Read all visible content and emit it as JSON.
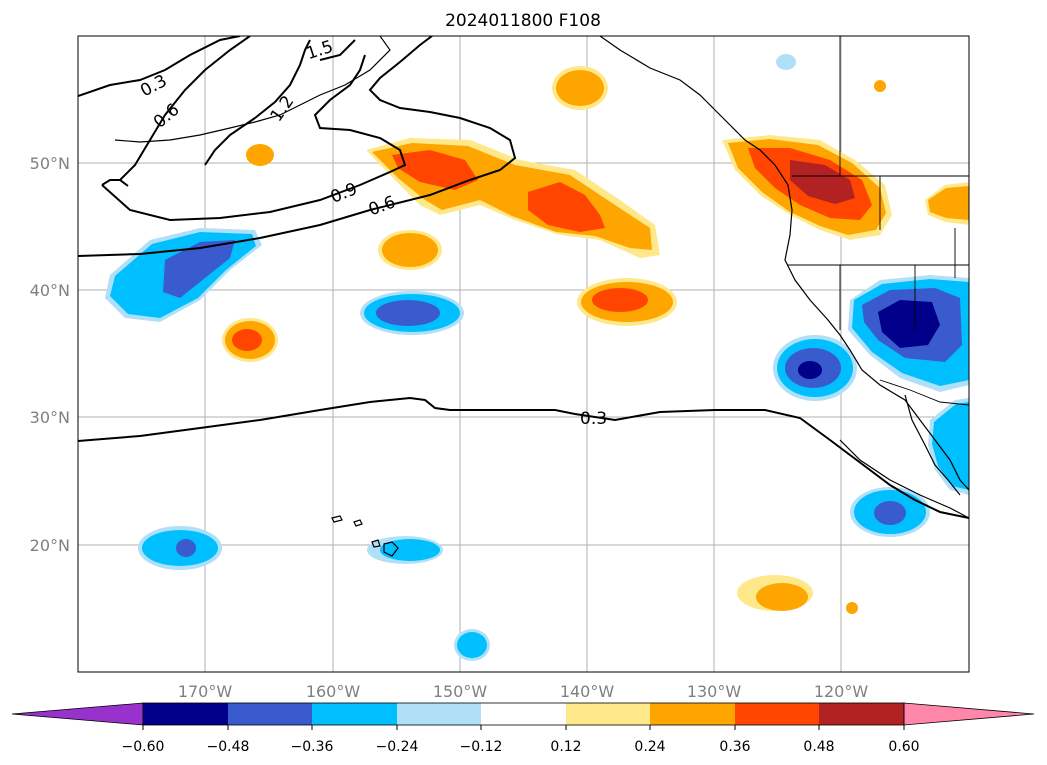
{
  "title": "2024011800 F108",
  "map": {
    "lat_labels": [
      "50°N",
      "40°N",
      "30°N",
      "20°N"
    ],
    "lon_labels": [
      "170°W",
      "160°W",
      "150°W",
      "140°W",
      "130°W",
      "120°W"
    ],
    "contour_labels": [
      "0.3",
      "0.6",
      "0.9",
      "0.6",
      "1.5",
      "1.2",
      "0.3"
    ]
  },
  "colorbar": {
    "ticks": [
      "−0.60",
      "−0.48",
      "−0.36",
      "−0.24",
      "−0.12",
      "0.12",
      "0.24",
      "0.36",
      "0.48",
      "0.60"
    ],
    "colors": [
      "#9932cc",
      "#00008b",
      "#3a5bcd",
      "#00bfff",
      "#b0e0f8",
      "#ffffff",
      "#ffe88a",
      "#ffa500",
      "#ff4500",
      "#b22222",
      "#ff88aa"
    ]
  }
}
